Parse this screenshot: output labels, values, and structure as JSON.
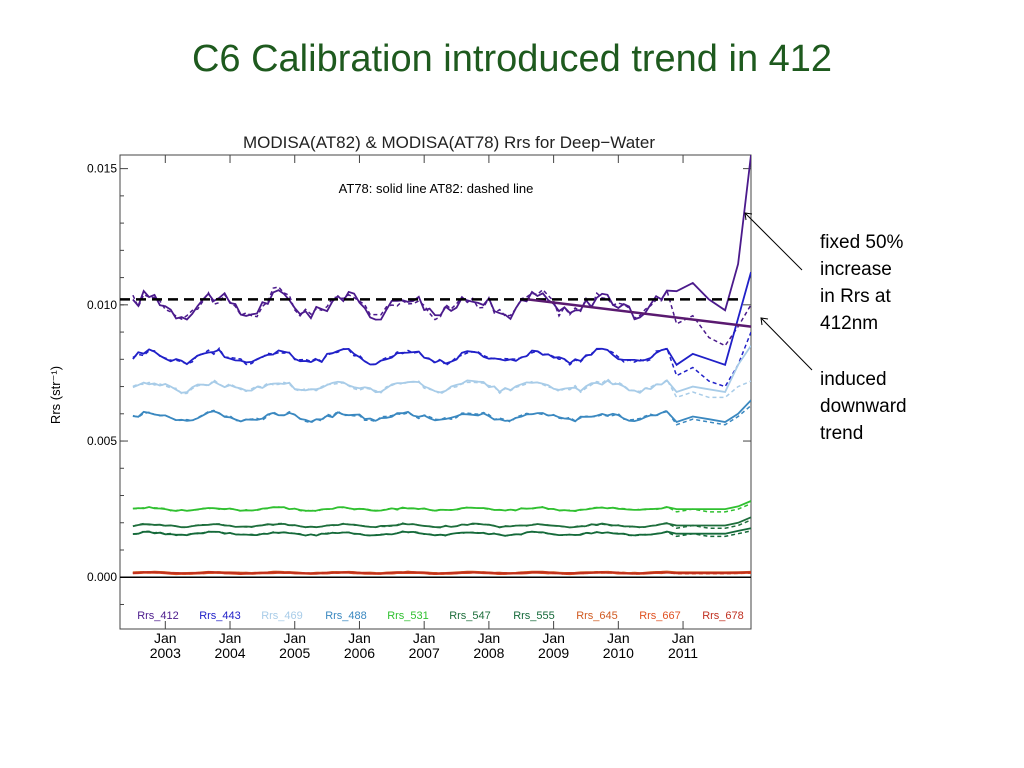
{
  "slide": {
    "title": "C6 Calibration introduced trend in 412",
    "callout_1": [
      "fixed 50%",
      "increase",
      "in Rrs at",
      "412nm"
    ],
    "callout_2": [
      "induced",
      "downward",
      "trend"
    ]
  },
  "chart_data": {
    "type": "line",
    "title": "MODISA(AT82) & MODISA(AT78)  Rrs for Deep−Water",
    "ylabel": "Rrs (str⁻¹)",
    "annotation": "AT78: solid line   AT82: dashed line",
    "ylim": [
      -0.0019,
      0.0155
    ],
    "yticks": [
      "0.000",
      "0.005",
      "0.010",
      "0.015"
    ],
    "xlim": [
      2002.3,
      2012.05
    ],
    "xticks": [
      {
        "top": "Jan",
        "bottom": "2003"
      },
      {
        "top": "Jan",
        "bottom": "2004"
      },
      {
        "top": "Jan",
        "bottom": "2005"
      },
      {
        "top": "Jan",
        "bottom": "2006"
      },
      {
        "top": "Jan",
        "bottom": "2007"
      },
      {
        "top": "Jan",
        "bottom": "2008"
      },
      {
        "top": "Jan",
        "bottom": "2009"
      },
      {
        "top": "Jan",
        "bottom": "2010"
      },
      {
        "top": "Jan",
        "bottom": "2011"
      }
    ],
    "legend_position": "bottom",
    "reference_lines": [
      {
        "style": "dashed",
        "color": "#000000",
        "x": [
          2002.3,
          2011.9
        ],
        "y": [
          0.0102,
          0.0102
        ]
      },
      {
        "style": "solid",
        "color": "#5a1a70",
        "x": [
          2008.6,
          2012.05
        ],
        "y": [
          0.0102,
          0.0092
        ]
      }
    ],
    "series": [
      {
        "name": "Rrs_412",
        "color": "#4b1a8c",
        "mean": 0.01,
        "amp": 0.00035,
        "noise": 0.00025,
        "end": [
          0.0105,
          0.0108,
          0.0102,
          0.0098,
          0.0115,
          0.0155
        ],
        "end_dashed": [
          0.0093,
          0.0096,
          0.0088,
          0.0085,
          0.0092,
          0.01
        ]
      },
      {
        "name": "Rrs_443",
        "color": "#2020c8",
        "mean": 0.0081,
        "amp": 0.0002,
        "noise": 0.00012,
        "end": [
          0.0078,
          0.0082,
          0.008,
          0.0078,
          0.0095,
          0.0112
        ],
        "end_dashed": [
          0.0074,
          0.0077,
          0.0072,
          0.007,
          0.0078,
          0.009
        ]
      },
      {
        "name": "Rrs_469",
        "color": "#a8cce8",
        "mean": 0.007,
        "amp": 0.00015,
        "noise": 0.0001,
        "end": [
          0.0068,
          0.007,
          0.0069,
          0.0068,
          0.0078,
          0.0085
        ],
        "end_dashed": [
          0.0066,
          0.0068,
          0.0066,
          0.0066,
          0.007,
          0.0072
        ]
      },
      {
        "name": "Rrs_488",
        "color": "#3a88c0",
        "mean": 0.0059,
        "amp": 0.00012,
        "noise": 8e-05,
        "end": [
          0.0057,
          0.0059,
          0.0058,
          0.0057,
          0.006,
          0.0065
        ],
        "end_dashed": [
          0.0056,
          0.0058,
          0.0057,
          0.0056,
          0.0059,
          0.0063
        ]
      },
      {
        "name": "Rrs_531",
        "color": "#30c030",
        "mean": 0.0025,
        "amp": 5e-05,
        "noise": 3e-05,
        "end": [
          0.0025,
          0.0025,
          0.0025,
          0.0025,
          0.0026,
          0.0028
        ],
        "end_dashed": [
          0.0024,
          0.0025,
          0.0024,
          0.0024,
          0.0025,
          0.0027
        ]
      },
      {
        "name": "Rrs_547",
        "color": "#1e6e3c",
        "mean": 0.0019,
        "amp": 5e-05,
        "noise": 3e-05,
        "end": [
          0.0019,
          0.0019,
          0.0019,
          0.0019,
          0.002,
          0.0022
        ],
        "end_dashed": [
          0.0018,
          0.0019,
          0.0018,
          0.0018,
          0.0019,
          0.0021
        ]
      },
      {
        "name": "Rrs_555",
        "color": "#156a3a",
        "mean": 0.0016,
        "amp": 5e-05,
        "noise": 3e-05,
        "end": [
          0.0016,
          0.0016,
          0.0016,
          0.0016,
          0.0017,
          0.0018
        ],
        "end_dashed": [
          0.0015,
          0.0016,
          0.0015,
          0.0015,
          0.0016,
          0.0017
        ]
      },
      {
        "name": "Rrs_645",
        "color": "#d05a20",
        "mean": 0.00018,
        "amp": 2e-05,
        "noise": 1e-05,
        "end": [
          0.00018,
          0.00018,
          0.00018,
          0.00018,
          0.00019,
          0.0002
        ],
        "end_dashed": [
          0.00017,
          0.00017,
          0.00017,
          0.00017,
          0.00018,
          0.00019
        ]
      },
      {
        "name": "Rrs_667",
        "color": "#e05020",
        "mean": 0.00014,
        "amp": 2e-05,
        "noise": 1e-05,
        "end": [
          0.00014,
          0.00014,
          0.00014,
          0.00014,
          0.00015,
          0.00016
        ],
        "end_dashed": [
          0.00013,
          0.00013,
          0.00013,
          0.00013,
          0.00014,
          0.00015
        ]
      },
      {
        "name": "Rrs_678",
        "color": "#c03020",
        "mean": 0.00016,
        "amp": 2e-05,
        "noise": 1e-05,
        "end": [
          0.00016,
          0.00016,
          0.00016,
          0.00016,
          0.00017,
          0.00018
        ],
        "end_dashed": [
          0.00015,
          0.00015,
          0.00015,
          0.00015,
          0.00016,
          0.00017
        ]
      }
    ]
  }
}
